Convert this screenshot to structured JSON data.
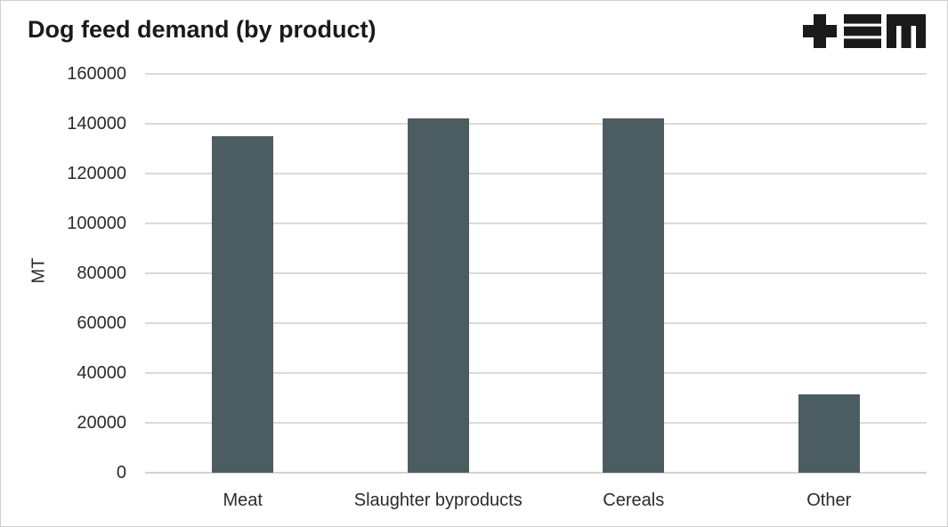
{
  "window": {
    "background": "#ffffff",
    "border_color": "#d0d0d0"
  },
  "header": {
    "title": "Dog feed demand (by product)"
  },
  "logo": {
    "name": "tem-logo",
    "color": "#1a1a1a",
    "glyphs": [
      "plus",
      "triple-bar",
      "squared-m"
    ]
  },
  "chart_data": {
    "type": "bar",
    "title": "Dog feed demand (by product)",
    "categories": [
      "Meat",
      "Slaughter byproducts",
      "Cereals",
      "Other"
    ],
    "values": [
      135000,
      142000,
      142000,
      31500
    ],
    "xlabel": "",
    "ylabel": "MT",
    "ylim": [
      0,
      160000
    ],
    "yticks": [
      0,
      20000,
      40000,
      60000,
      80000,
      100000,
      120000,
      140000,
      160000
    ],
    "ytick_labels": [
      "0",
      "20000",
      "40000",
      "60000",
      "80000",
      "100000",
      "120000",
      "140000",
      "160000"
    ],
    "grid": "horizontal-only",
    "legend": "none",
    "bar_color": "#4c5d61",
    "gridline_color": "#dadada",
    "axis_line_color": "#d2d2d2",
    "text_color": "#2b2b2b"
  }
}
